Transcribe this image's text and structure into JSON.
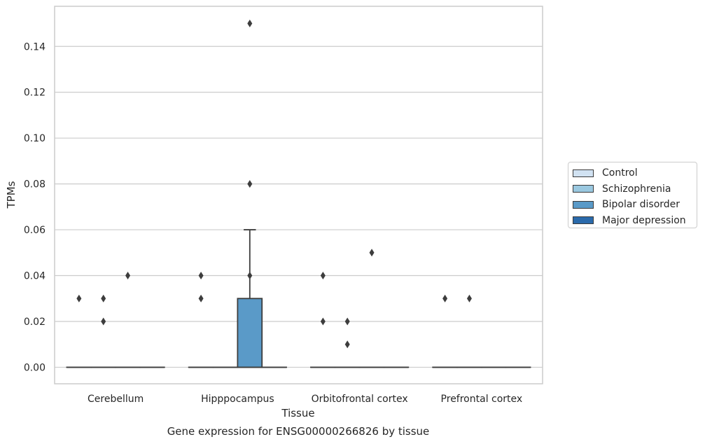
{
  "chart_data": {
    "type": "box",
    "title": "Gene expression for ENSG00000266826 by tissue",
    "xlabel": "Tissue",
    "ylabel": "TPMs",
    "ylim": [
      -0.0072,
      0.1575
    ],
    "yticks": [
      0.0,
      0.02,
      0.04,
      0.06,
      0.08,
      0.1,
      0.12,
      0.14
    ],
    "ytick_labels": [
      "0.00",
      "0.02",
      "0.04",
      "0.06",
      "0.08",
      "0.10",
      "0.12",
      "0.14"
    ],
    "grid": true,
    "legend_position": "right",
    "categories": [
      "Cerebellum",
      "Hipppocampus",
      "Orbitofrontal cortex",
      "Prefrontal cortex"
    ],
    "series": [
      {
        "name": "Control",
        "color": "#d1e2f2",
        "boxes": [
          {
            "q1": 0,
            "median": 0,
            "q3": 0,
            "whisker_low": 0,
            "whisker_high": 0,
            "outliers": [
              0.03
            ]
          },
          {
            "q1": 0,
            "median": 0,
            "q3": 0,
            "whisker_low": 0,
            "whisker_high": 0,
            "outliers": [
              0.03,
              0.04
            ]
          },
          {
            "q1": 0,
            "median": 0,
            "q3": 0,
            "whisker_low": 0,
            "whisker_high": 0,
            "outliers": [
              0.02,
              0.04
            ]
          },
          {
            "q1": 0,
            "median": 0,
            "q3": 0,
            "whisker_low": 0,
            "whisker_high": 0,
            "outliers": [
              0.03
            ]
          }
        ]
      },
      {
        "name": "Schizophrenia",
        "color": "#9ac8e0",
        "boxes": [
          {
            "q1": 0,
            "median": 0,
            "q3": 0,
            "whisker_low": 0,
            "whisker_high": 0,
            "outliers": [
              0.02,
              0.03
            ]
          },
          {
            "q1": 0,
            "median": 0,
            "q3": 0,
            "whisker_low": 0,
            "whisker_high": 0,
            "outliers": []
          },
          {
            "q1": 0,
            "median": 0,
            "q3": 0,
            "whisker_low": 0,
            "whisker_high": 0,
            "outliers": [
              0.01,
              0.02
            ]
          },
          {
            "q1": 0,
            "median": 0,
            "q3": 0,
            "whisker_low": 0,
            "whisker_high": 0,
            "outliers": [
              0.03
            ]
          }
        ]
      },
      {
        "name": "Bipolar disorder",
        "color": "#5a9ac8",
        "boxes": [
          {
            "q1": 0,
            "median": 0,
            "q3": 0,
            "whisker_low": 0,
            "whisker_high": 0,
            "outliers": [
              0.04
            ]
          },
          {
            "q1": 0,
            "median": 0,
            "q3": 0.03,
            "whisker_low": 0,
            "whisker_high": 0.06,
            "outliers": [
              0.04,
              0.08,
              0.15
            ]
          },
          {
            "q1": 0,
            "median": 0,
            "q3": 0,
            "whisker_low": 0,
            "whisker_high": 0,
            "outliers": [
              0.05
            ]
          },
          {
            "q1": 0,
            "median": 0,
            "q3": 0,
            "whisker_low": 0,
            "whisker_high": 0,
            "outliers": []
          }
        ]
      },
      {
        "name": "Major depression",
        "color": "#2a6aab",
        "boxes": [
          {
            "q1": 0,
            "median": 0,
            "q3": 0,
            "whisker_low": 0,
            "whisker_high": 0,
            "outliers": []
          },
          {
            "q1": 0,
            "median": 0,
            "q3": 0,
            "whisker_low": 0,
            "whisker_high": 0,
            "outliers": []
          },
          {
            "q1": 0,
            "median": 0,
            "q3": 0,
            "whisker_low": 0,
            "whisker_high": 0,
            "outliers": []
          },
          {
            "q1": 0,
            "median": 0,
            "q3": 0,
            "whisker_low": 0,
            "whisker_high": 0,
            "outliers": []
          }
        ]
      }
    ]
  }
}
